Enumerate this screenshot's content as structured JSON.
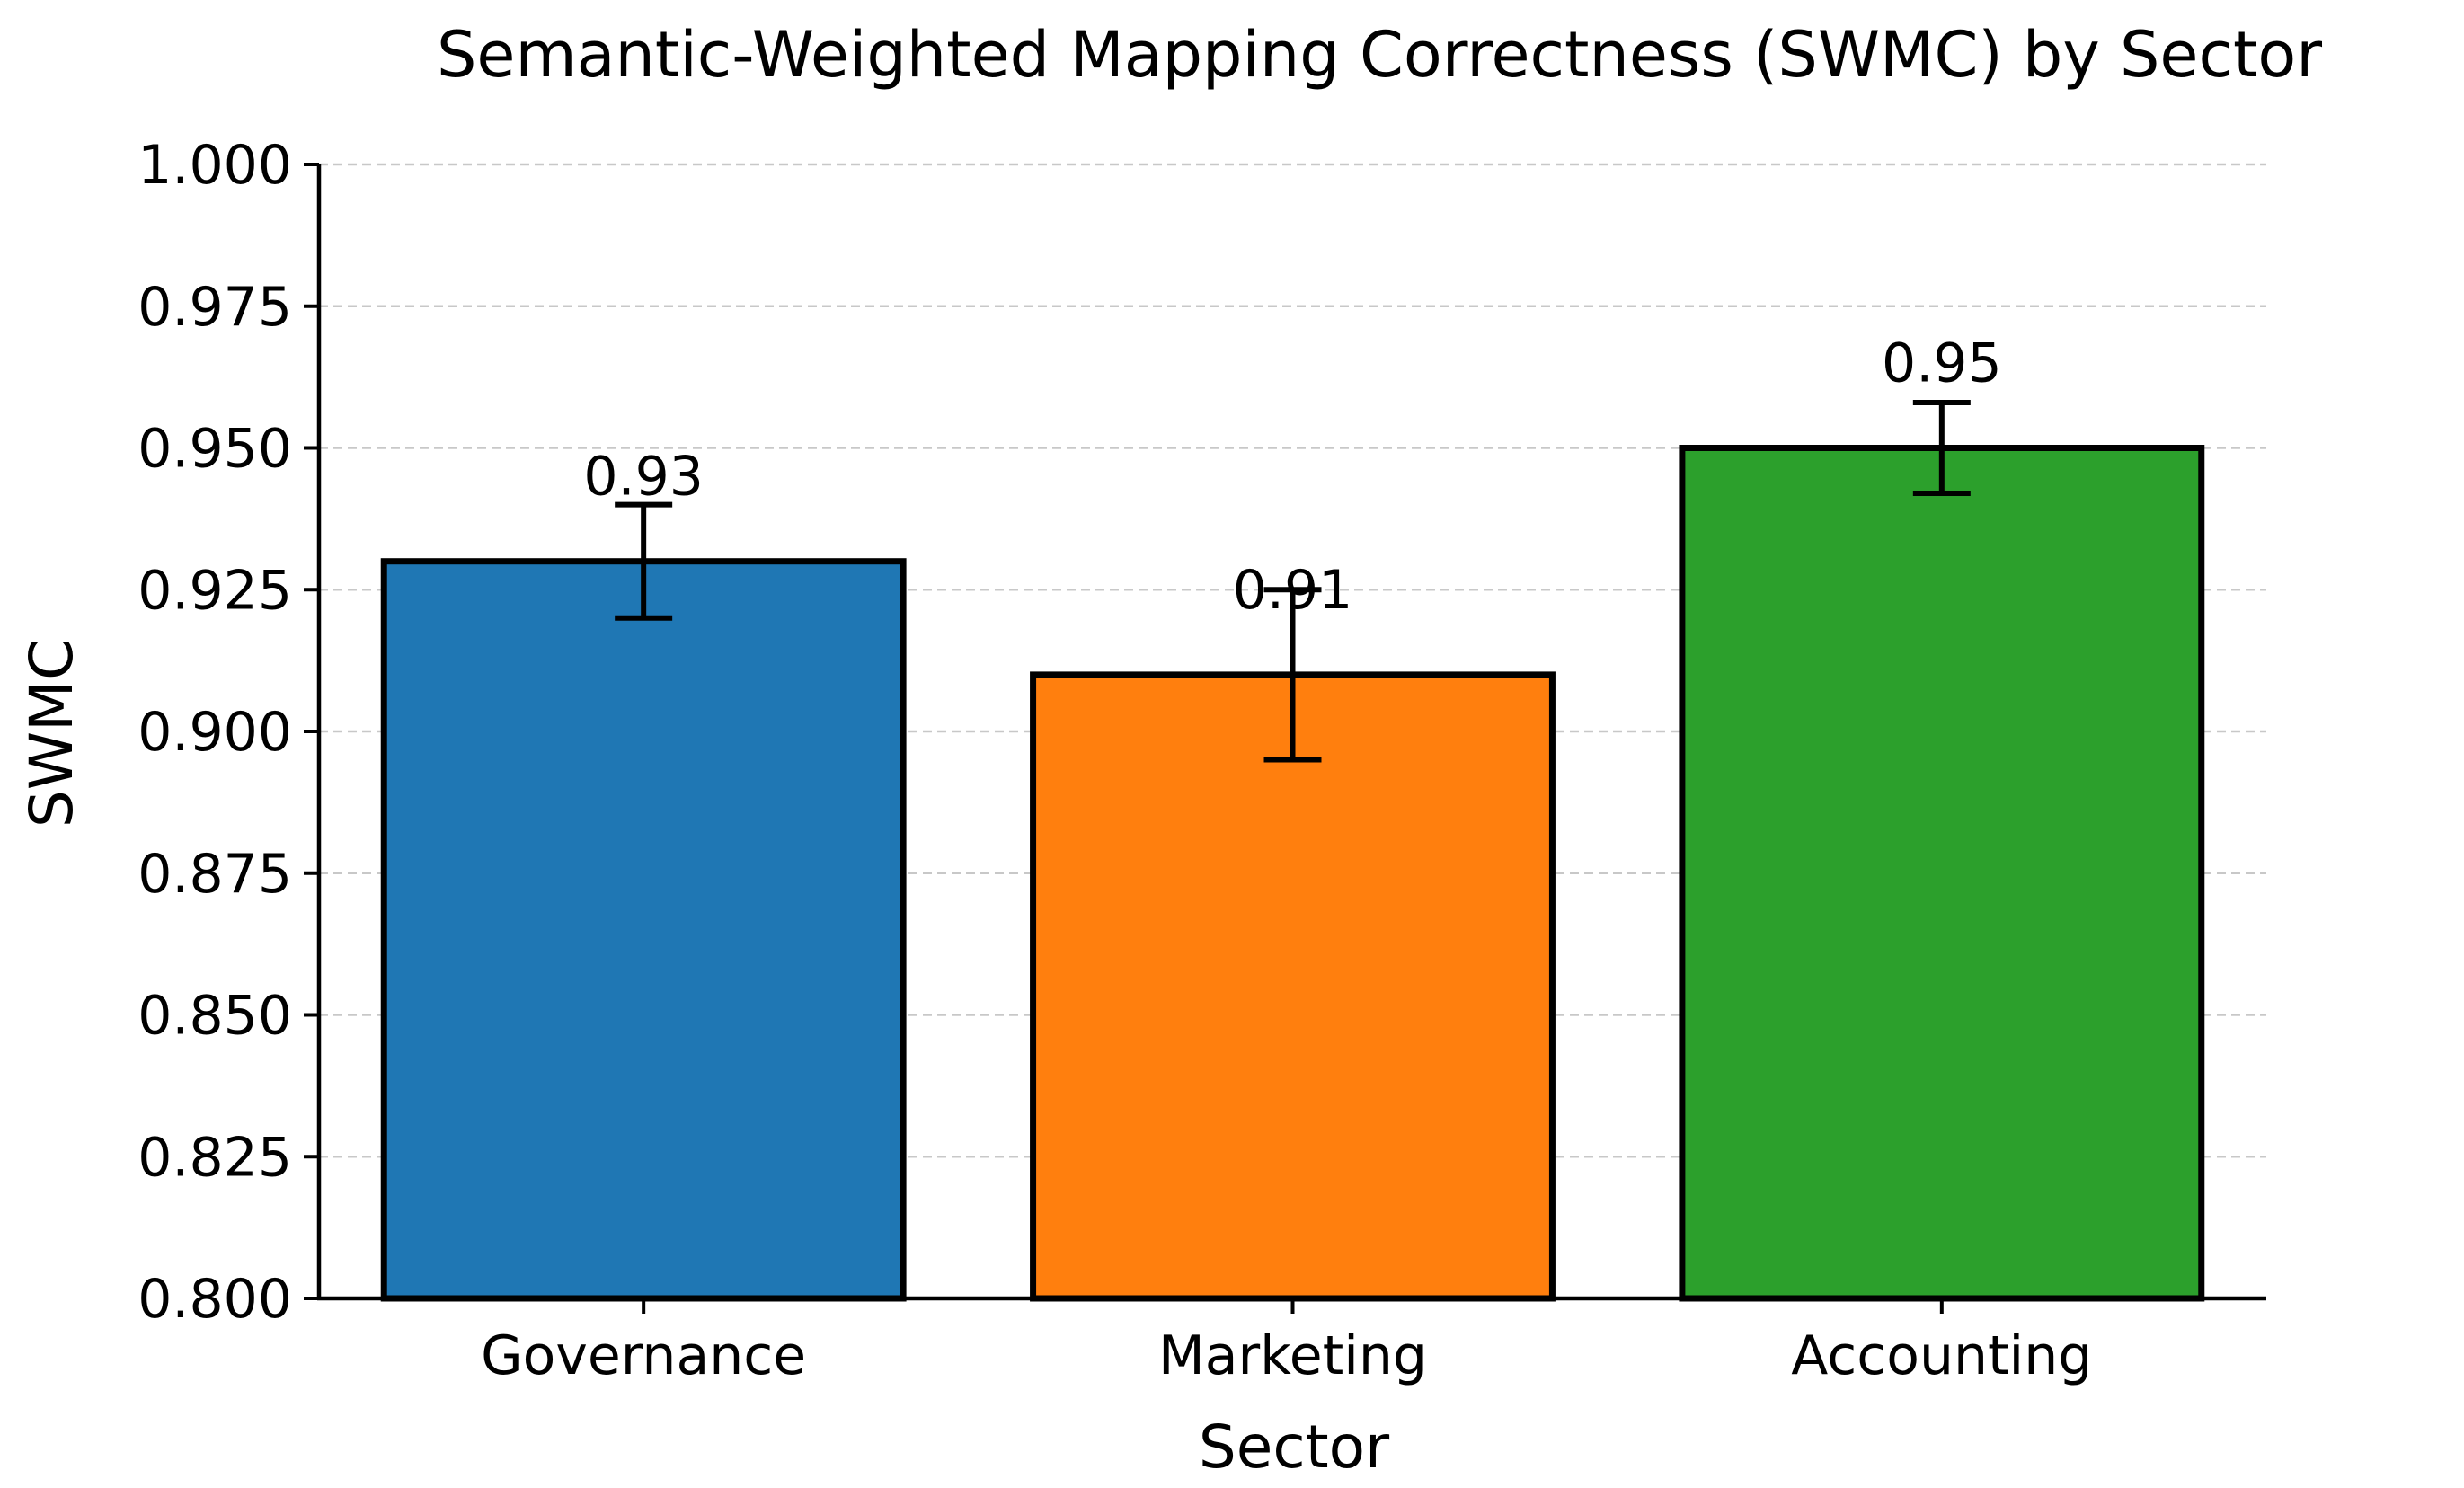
{
  "chart_data": {
    "type": "bar",
    "title": "Semantic-Weighted Mapping Correctness (SWMC) by Sector",
    "xlabel": "Sector",
    "ylabel": "SWMC",
    "categories": [
      "Governance",
      "Marketing",
      "Accounting"
    ],
    "values": [
      0.93,
      0.91,
      0.95
    ],
    "errors": [
      0.01,
      0.015,
      0.008
    ],
    "value_labels": [
      "0.93",
      "0.91",
      "0.95"
    ],
    "ylim": [
      0.8,
      1.0
    ],
    "yticks": [
      0.8,
      0.825,
      0.85,
      0.875,
      0.9,
      0.925,
      0.95,
      0.975,
      1.0
    ],
    "ytick_labels": [
      "0.800",
      "0.825",
      "0.850",
      "0.875",
      "0.900",
      "0.925",
      "0.950",
      "0.975",
      "1.000"
    ],
    "bar_colors": [
      "#1f77b4",
      "#ff7f0e",
      "#2ca02c"
    ],
    "edge_color": "#000000",
    "grid": "horizontal dashed",
    "legend": "none"
  }
}
